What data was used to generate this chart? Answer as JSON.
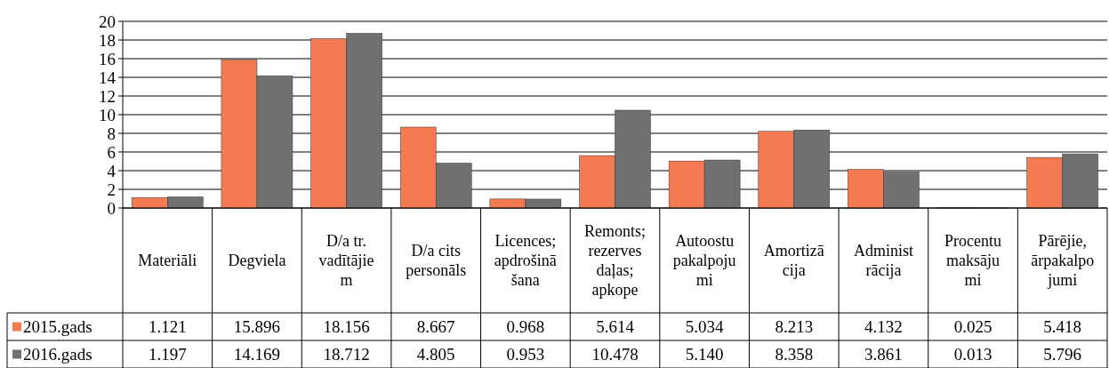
{
  "chart_data": {
    "type": "bar",
    "categories": [
      "Materiāli",
      "Degviela",
      "D/a tr.\nvadītājie\nm",
      "D/a cits\npersonāls",
      "Licences;\napdrošinā\nšana",
      "Remonts;\nrezerves\ndaļas;\napkope",
      "Autoostu\npakalpoju\nmi",
      "Amortizā\ncija",
      "Administ\nrācija",
      "Procentu\nmaksāju\nmi",
      "Pārējie,\nārpakalpo\njumi"
    ],
    "series": [
      {
        "name": "2015.gads",
        "color": "#f47a52",
        "values": [
          1.121,
          15.896,
          18.156,
          8.667,
          0.968,
          5.614,
          5.034,
          8.213,
          4.132,
          0.025,
          5.418
        ],
        "value_labels": [
          "1.121",
          "15.896",
          "18.156",
          "8.667",
          "0.968",
          "5.614",
          "5.034",
          "8.213",
          "4.132",
          "0.025",
          "5.418"
        ]
      },
      {
        "name": "2016.gads",
        "color": "#707070",
        "values": [
          1.197,
          14.169,
          18.712,
          4.805,
          0.953,
          10.478,
          5.14,
          8.358,
          3.861,
          0.013,
          5.796
        ],
        "value_labels": [
          "1.197",
          "14.169",
          "18.712",
          "4.805",
          "0.953",
          "10.478",
          "5.140",
          "8.358",
          "3.861",
          "0.013",
          "5.796"
        ]
      }
    ],
    "ylim": [
      0,
      20
    ],
    "yticks": [
      0,
      2,
      4,
      6,
      8,
      10,
      12,
      14,
      16,
      18,
      20
    ],
    "grid": "y",
    "legend": "bottom"
  }
}
